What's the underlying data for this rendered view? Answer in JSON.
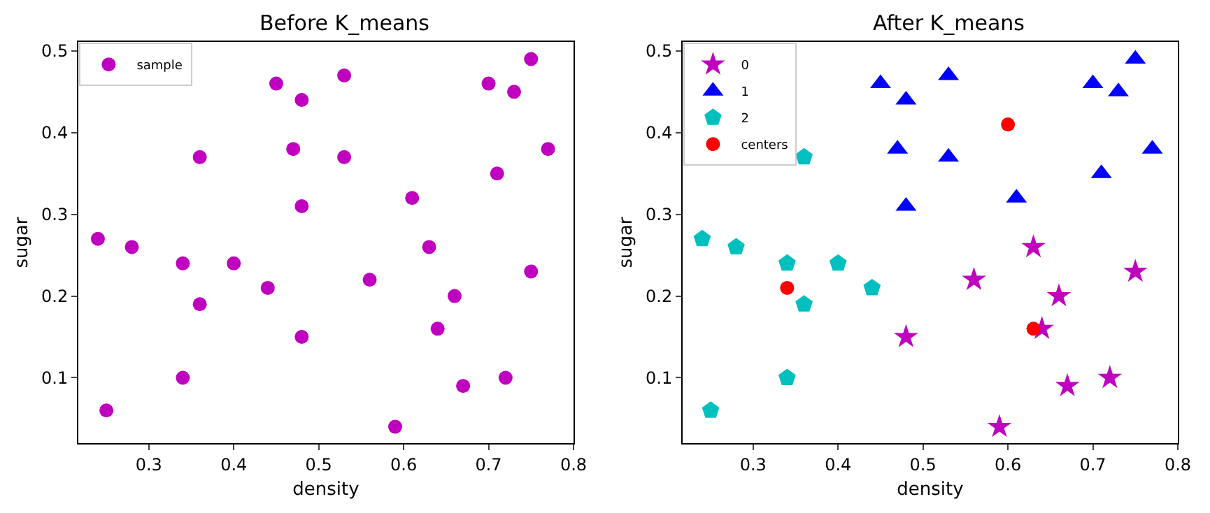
{
  "chart_data": [
    {
      "type": "scatter",
      "title": "Before K_means",
      "xlabel": "density",
      "ylabel": "sugar",
      "xlim": [
        0.217,
        0.8
      ],
      "ylim": [
        0.02,
        0.511
      ],
      "xticks": [
        0.3,
        0.4,
        0.5,
        0.6,
        0.7,
        0.8
      ],
      "yticks": [
        0.1,
        0.2,
        0.3,
        0.4,
        0.5
      ],
      "legend": "top left",
      "marker": "circle",
      "series": [
        {
          "name": "sample",
          "color": "#bf00bf",
          "x": [
            0.7,
            0.77,
            0.63,
            0.61,
            0.56,
            0.4,
            0.48,
            0.44,
            0.67,
            0.24,
            0.25,
            0.34,
            0.64,
            0.66,
            0.36,
            0.59,
            0.72,
            0.36,
            0.34,
            0.28,
            0.75,
            0.71,
            0.48,
            0.48,
            0.53,
            0.75,
            0.53,
            0.47,
            0.73,
            0.45
          ],
          "values": [
            0.46,
            0.38,
            0.26,
            0.32,
            0.22,
            0.24,
            0.15,
            0.21,
            0.09,
            0.27,
            0.06,
            0.1,
            0.16,
            0.2,
            0.37,
            0.04,
            0.1,
            0.19,
            0.24,
            0.26,
            0.23,
            0.35,
            0.31,
            0.44,
            0.37,
            0.49,
            0.47,
            0.38,
            0.45,
            0.46
          ]
        }
      ]
    },
    {
      "type": "scatter",
      "title": "After K_means",
      "xlabel": "density",
      "ylabel": "sugar",
      "xlim": [
        0.217,
        0.8
      ],
      "ylim": [
        0.02,
        0.511
      ],
      "xticks": [
        0.3,
        0.4,
        0.5,
        0.6,
        0.7,
        0.8
      ],
      "yticks": [
        0.1,
        0.2,
        0.3,
        0.4,
        0.5
      ],
      "legend": "top left",
      "series": [
        {
          "name": "0",
          "color": "#bf00bf",
          "marker": "star",
          "x": [
            0.63,
            0.56,
            0.48,
            0.67,
            0.64,
            0.66,
            0.59,
            0.72,
            0.75
          ],
          "values": [
            0.26,
            0.22,
            0.15,
            0.09,
            0.16,
            0.2,
            0.04,
            0.1,
            0.23
          ]
        },
        {
          "name": "1",
          "color": "#0000ff",
          "marker": "triangle",
          "x": [
            0.7,
            0.77,
            0.61,
            0.71,
            0.48,
            0.48,
            0.53,
            0.75,
            0.53,
            0.47,
            0.73,
            0.45
          ],
          "values": [
            0.46,
            0.38,
            0.32,
            0.35,
            0.31,
            0.44,
            0.37,
            0.49,
            0.47,
            0.38,
            0.45,
            0.46
          ]
        },
        {
          "name": "2",
          "color": "#00bfbf",
          "x": [
            0.4,
            0.44,
            0.24,
            0.25,
            0.34,
            0.36,
            0.36,
            0.34,
            0.28
          ],
          "values": [
            0.24,
            0.21,
            0.27,
            0.06,
            0.1,
            0.37,
            0.19,
            0.24,
            0.26
          ]
        },
        {
          "name": "centers",
          "color": "#ff0000",
          "marker": "circle",
          "x": [
            0.6,
            0.34,
            0.63
          ],
          "values": [
            0.41,
            0.21,
            0.16
          ]
        }
      ]
    }
  ]
}
